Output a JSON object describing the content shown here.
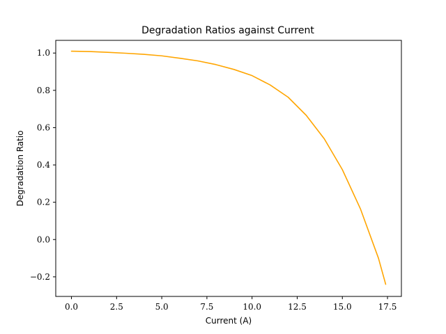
{
  "chart_data": {
    "type": "line",
    "title": "Degradation Ratios against Current",
    "xlabel": "Current (A)",
    "ylabel": "Degradation Ratio",
    "xlim": [
      -0.87,
      18.27
    ],
    "ylim": [
      -0.305,
      1.068
    ],
    "grid": false,
    "legend": "none",
    "xticks": [
      0.0,
      2.5,
      5.0,
      7.5,
      10.0,
      12.5,
      15.0,
      17.5
    ],
    "xtick_labels": [
      "0.0",
      "2.5",
      "5.0",
      "7.5",
      "10.0",
      "12.5",
      "15.0",
      "17.5"
    ],
    "yticks": [
      -0.2,
      0.0,
      0.2,
      0.4,
      0.6,
      0.8,
      1.0
    ],
    "ytick_labels": [
      "−0.2",
      "0.0",
      "0.2",
      "0.4",
      "0.6",
      "0.8",
      "1.0"
    ],
    "series": [
      {
        "color": "#ffa500",
        "x": [
          0.0,
          1.0,
          2.0,
          3.0,
          4.0,
          5.0,
          6.0,
          7.0,
          8.0,
          9.0,
          10.0,
          11.0,
          12.0,
          13.0,
          14.0,
          15.0,
          16.0,
          17.0,
          17.4
        ],
        "y": [
          1.01,
          1.008,
          1.004,
          0.999,
          0.993,
          0.985,
          0.972,
          0.958,
          0.938,
          0.912,
          0.879,
          0.829,
          0.763,
          0.666,
          0.54,
          0.375,
          0.165,
          -0.1,
          -0.24
        ]
      }
    ]
  }
}
